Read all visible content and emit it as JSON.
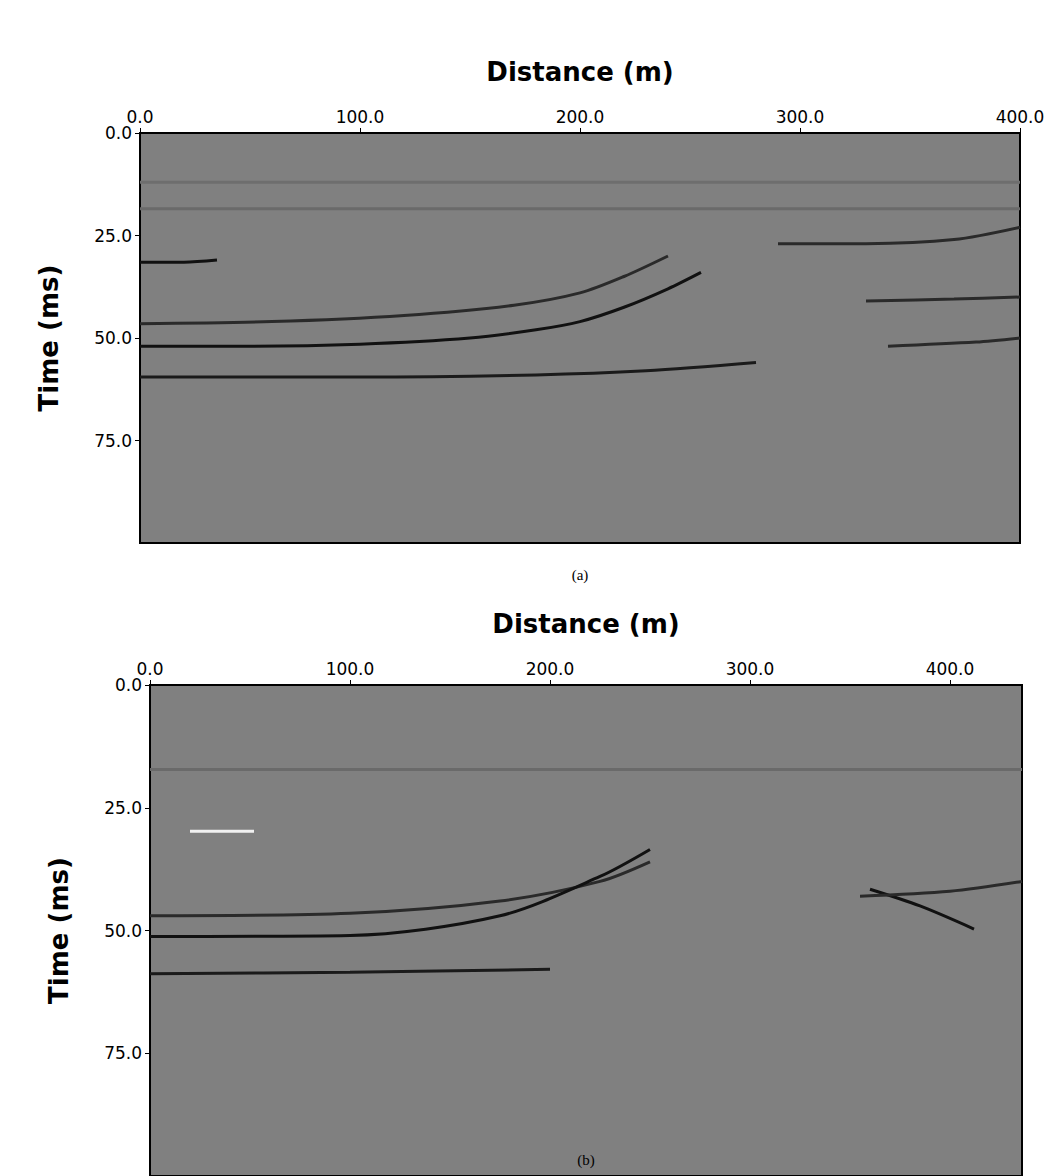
{
  "chart_data": [
    {
      "type": "line",
      "caption": "(a)",
      "x_label": "Distance (m)",
      "y_label": "Time (ms)",
      "xlim": [
        0,
        400
      ],
      "xticks": [
        {
          "value": 0,
          "label": "0.0"
        },
        {
          "value": 100,
          "label": "100.0"
        },
        {
          "value": 200,
          "label": "200.0"
        },
        {
          "value": 300,
          "label": "300.0"
        },
        {
          "value": 400,
          "label": "400.0"
        }
      ],
      "ylim": [
        0,
        100
      ],
      "yticks": [
        {
          "value": 0,
          "label": "0.0"
        },
        {
          "value": 25,
          "label": "25.0"
        },
        {
          "value": 50,
          "label": "50.0"
        },
        {
          "value": 75,
          "label": "75.0"
        }
      ],
      "grid": false,
      "series": [
        {
          "color": "#6e6e6e",
          "x": [
            0,
            400
          ],
          "values": [
            12,
            12
          ]
        },
        {
          "color": "#6a6a6a",
          "x": [
            0,
            400
          ],
          "values": [
            18.5,
            18.5
          ]
        },
        {
          "color": "#111111",
          "x": [
            0,
            20,
            35
          ],
          "values": [
            31.5,
            31.5,
            31
          ]
        },
        {
          "color": "#2a2a2a",
          "x": [
            0,
            60,
            120,
            170,
            200,
            220,
            240
          ],
          "values": [
            46.5,
            46,
            44.5,
            42,
            39,
            35,
            30
          ]
        },
        {
          "color": "#111111",
          "x": [
            0,
            50,
            100,
            150,
            180,
            200,
            220,
            240,
            255
          ],
          "values": [
            52,
            52,
            51.5,
            50,
            48,
            46,
            42.5,
            38,
            34
          ]
        },
        {
          "color": "#1a1a1a",
          "x": [
            0,
            100,
            180,
            230,
            280
          ],
          "values": [
            59.5,
            59.5,
            59,
            58,
            56
          ]
        },
        {
          "color": "#2a2a2a",
          "x": [
            290,
            330,
            370,
            400
          ],
          "values": [
            27,
            27,
            26,
            23
          ]
        },
        {
          "color": "#2a2a2a",
          "x": [
            330,
            370,
            400
          ],
          "values": [
            41,
            40.5,
            40
          ]
        },
        {
          "color": "#2a2a2a",
          "x": [
            340,
            380,
            400
          ],
          "values": [
            52,
            51,
            50
          ]
        }
      ]
    },
    {
      "type": "line",
      "caption": "(b)",
      "x_label": "Distance (m)",
      "y_label": "Time (ms)",
      "xlim": [
        0,
        436
      ],
      "xticks": [
        {
          "value": 0,
          "label": "0.0"
        },
        {
          "value": 100,
          "label": "100.0"
        },
        {
          "value": 200,
          "label": "200.0"
        },
        {
          "value": 300,
          "label": "300.0"
        },
        {
          "value": 400,
          "label": "400.0"
        }
      ],
      "ylim": [
        0,
        100
      ],
      "yticks": [
        {
          "value": 0,
          "label": "0.0"
        },
        {
          "value": 25,
          "label": "25.0"
        },
        {
          "value": 50,
          "label": "50.0"
        },
        {
          "value": 75,
          "label": "75.0"
        }
      ],
      "grid": false,
      "series": [
        {
          "color": "#6a6a6a",
          "x": [
            0,
            436
          ],
          "values": [
            17.2,
            17.2
          ]
        },
        {
          "color": "#f0f0f0",
          "x": [
            20,
            52
          ],
          "values": [
            29.8,
            29.8
          ]
        },
        {
          "color": "#2a2a2a",
          "x": [
            0,
            100,
            175,
            225,
            250
          ],
          "values": [
            47,
            46.5,
            44,
            40,
            36
          ]
        },
        {
          "color": "#111111",
          "x": [
            0,
            100,
            175,
            225,
            250
          ],
          "values": [
            51.2,
            51,
            47,
            39,
            33.5
          ]
        },
        {
          "color": "#1a1a1a",
          "x": [
            0,
            100,
            200
          ],
          "values": [
            58.8,
            58.5,
            57.9
          ]
        },
        {
          "color": "#111111",
          "x": [
            360,
            385,
            412
          ],
          "values": [
            41.6,
            45,
            49.7
          ]
        },
        {
          "color": "#2a2a2a",
          "x": [
            355,
            400,
            436
          ],
          "values": [
            43,
            42,
            40
          ]
        }
      ]
    }
  ]
}
